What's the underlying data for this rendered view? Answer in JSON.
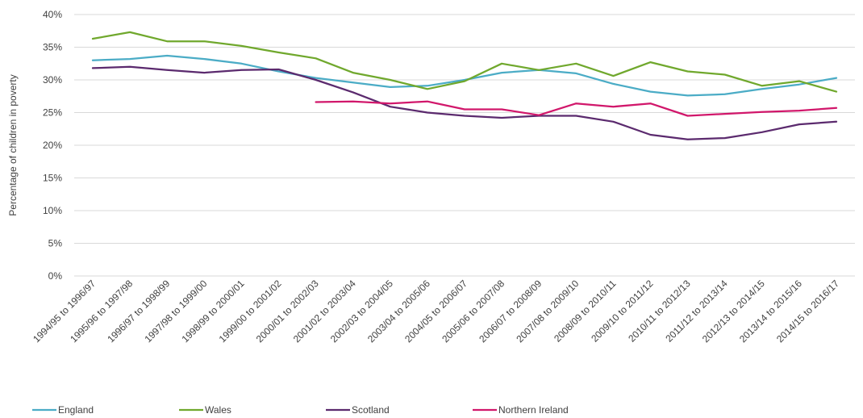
{
  "chart_data": {
    "type": "line",
    "title": "",
    "xlabel": "",
    "ylabel": "Percentage of children in poverty",
    "ylim": [
      0,
      40
    ],
    "y_ticks": [
      "0%",
      "5%",
      "10%",
      "15%",
      "20%",
      "25%",
      "30%",
      "35%",
      "40%"
    ],
    "grid": "horizontal",
    "legend_position": "bottom",
    "categories": [
      "1994/95 to 1996/97",
      "1995/96 to 1997/98",
      "1996/97 to 1998/99",
      "1997/98 to 1999/00",
      "1998/99 to 2000/01",
      "1999/00 to 2001/02",
      "2000/01 to 2002/03",
      "2001/02 to 2003/04",
      "2002/03 to 2004/05",
      "2003/04 to 2005/06",
      "2004/05 to 2006/07",
      "2005/06 to 2007/08",
      "2006/07 to 2008/09",
      "2007/08 to 2009/10",
      "2008/09 to 2010/11",
      "2009/10 to 2011/12",
      "2010/11 to 2012/13",
      "2011/12 to 2013/14",
      "2012/13 to 2014/15",
      "2013/14 to 2015/16",
      "2014/15 to 2016/17"
    ],
    "series": [
      {
        "name": "England",
        "color": "#4bacc6",
        "values": [
          33.0,
          33.2,
          33.7,
          33.2,
          32.5,
          31.3,
          30.3,
          29.6,
          28.9,
          29.1,
          30.0,
          31.1,
          31.5,
          31.0,
          29.4,
          28.2,
          27.6,
          27.8,
          28.6,
          29.3,
          30.3
        ]
      },
      {
        "name": "Wales",
        "color": "#70a82d",
        "values": [
          36.3,
          37.3,
          35.9,
          35.9,
          35.2,
          34.2,
          33.3,
          31.1,
          30.0,
          28.6,
          29.8,
          32.5,
          31.5,
          32.5,
          30.6,
          32.7,
          31.3,
          30.8,
          29.1,
          29.8,
          28.2
        ]
      },
      {
        "name": "Scotland",
        "color": "#5b2a6e",
        "values": [
          31.8,
          32.0,
          31.5,
          31.1,
          31.5,
          31.6,
          30.0,
          28.1,
          25.9,
          25.0,
          24.5,
          24.2,
          24.5,
          24.5,
          23.6,
          21.6,
          20.9,
          21.1,
          22.0,
          23.2,
          23.6
        ]
      },
      {
        "name": "Northern Ireland",
        "color": "#d1176b",
        "values": [
          null,
          null,
          null,
          null,
          null,
          null,
          26.6,
          26.7,
          26.4,
          26.7,
          25.5,
          25.5,
          24.6,
          26.4,
          25.9,
          26.4,
          24.5,
          24.8,
          25.1,
          25.3,
          25.7
        ]
      }
    ]
  }
}
